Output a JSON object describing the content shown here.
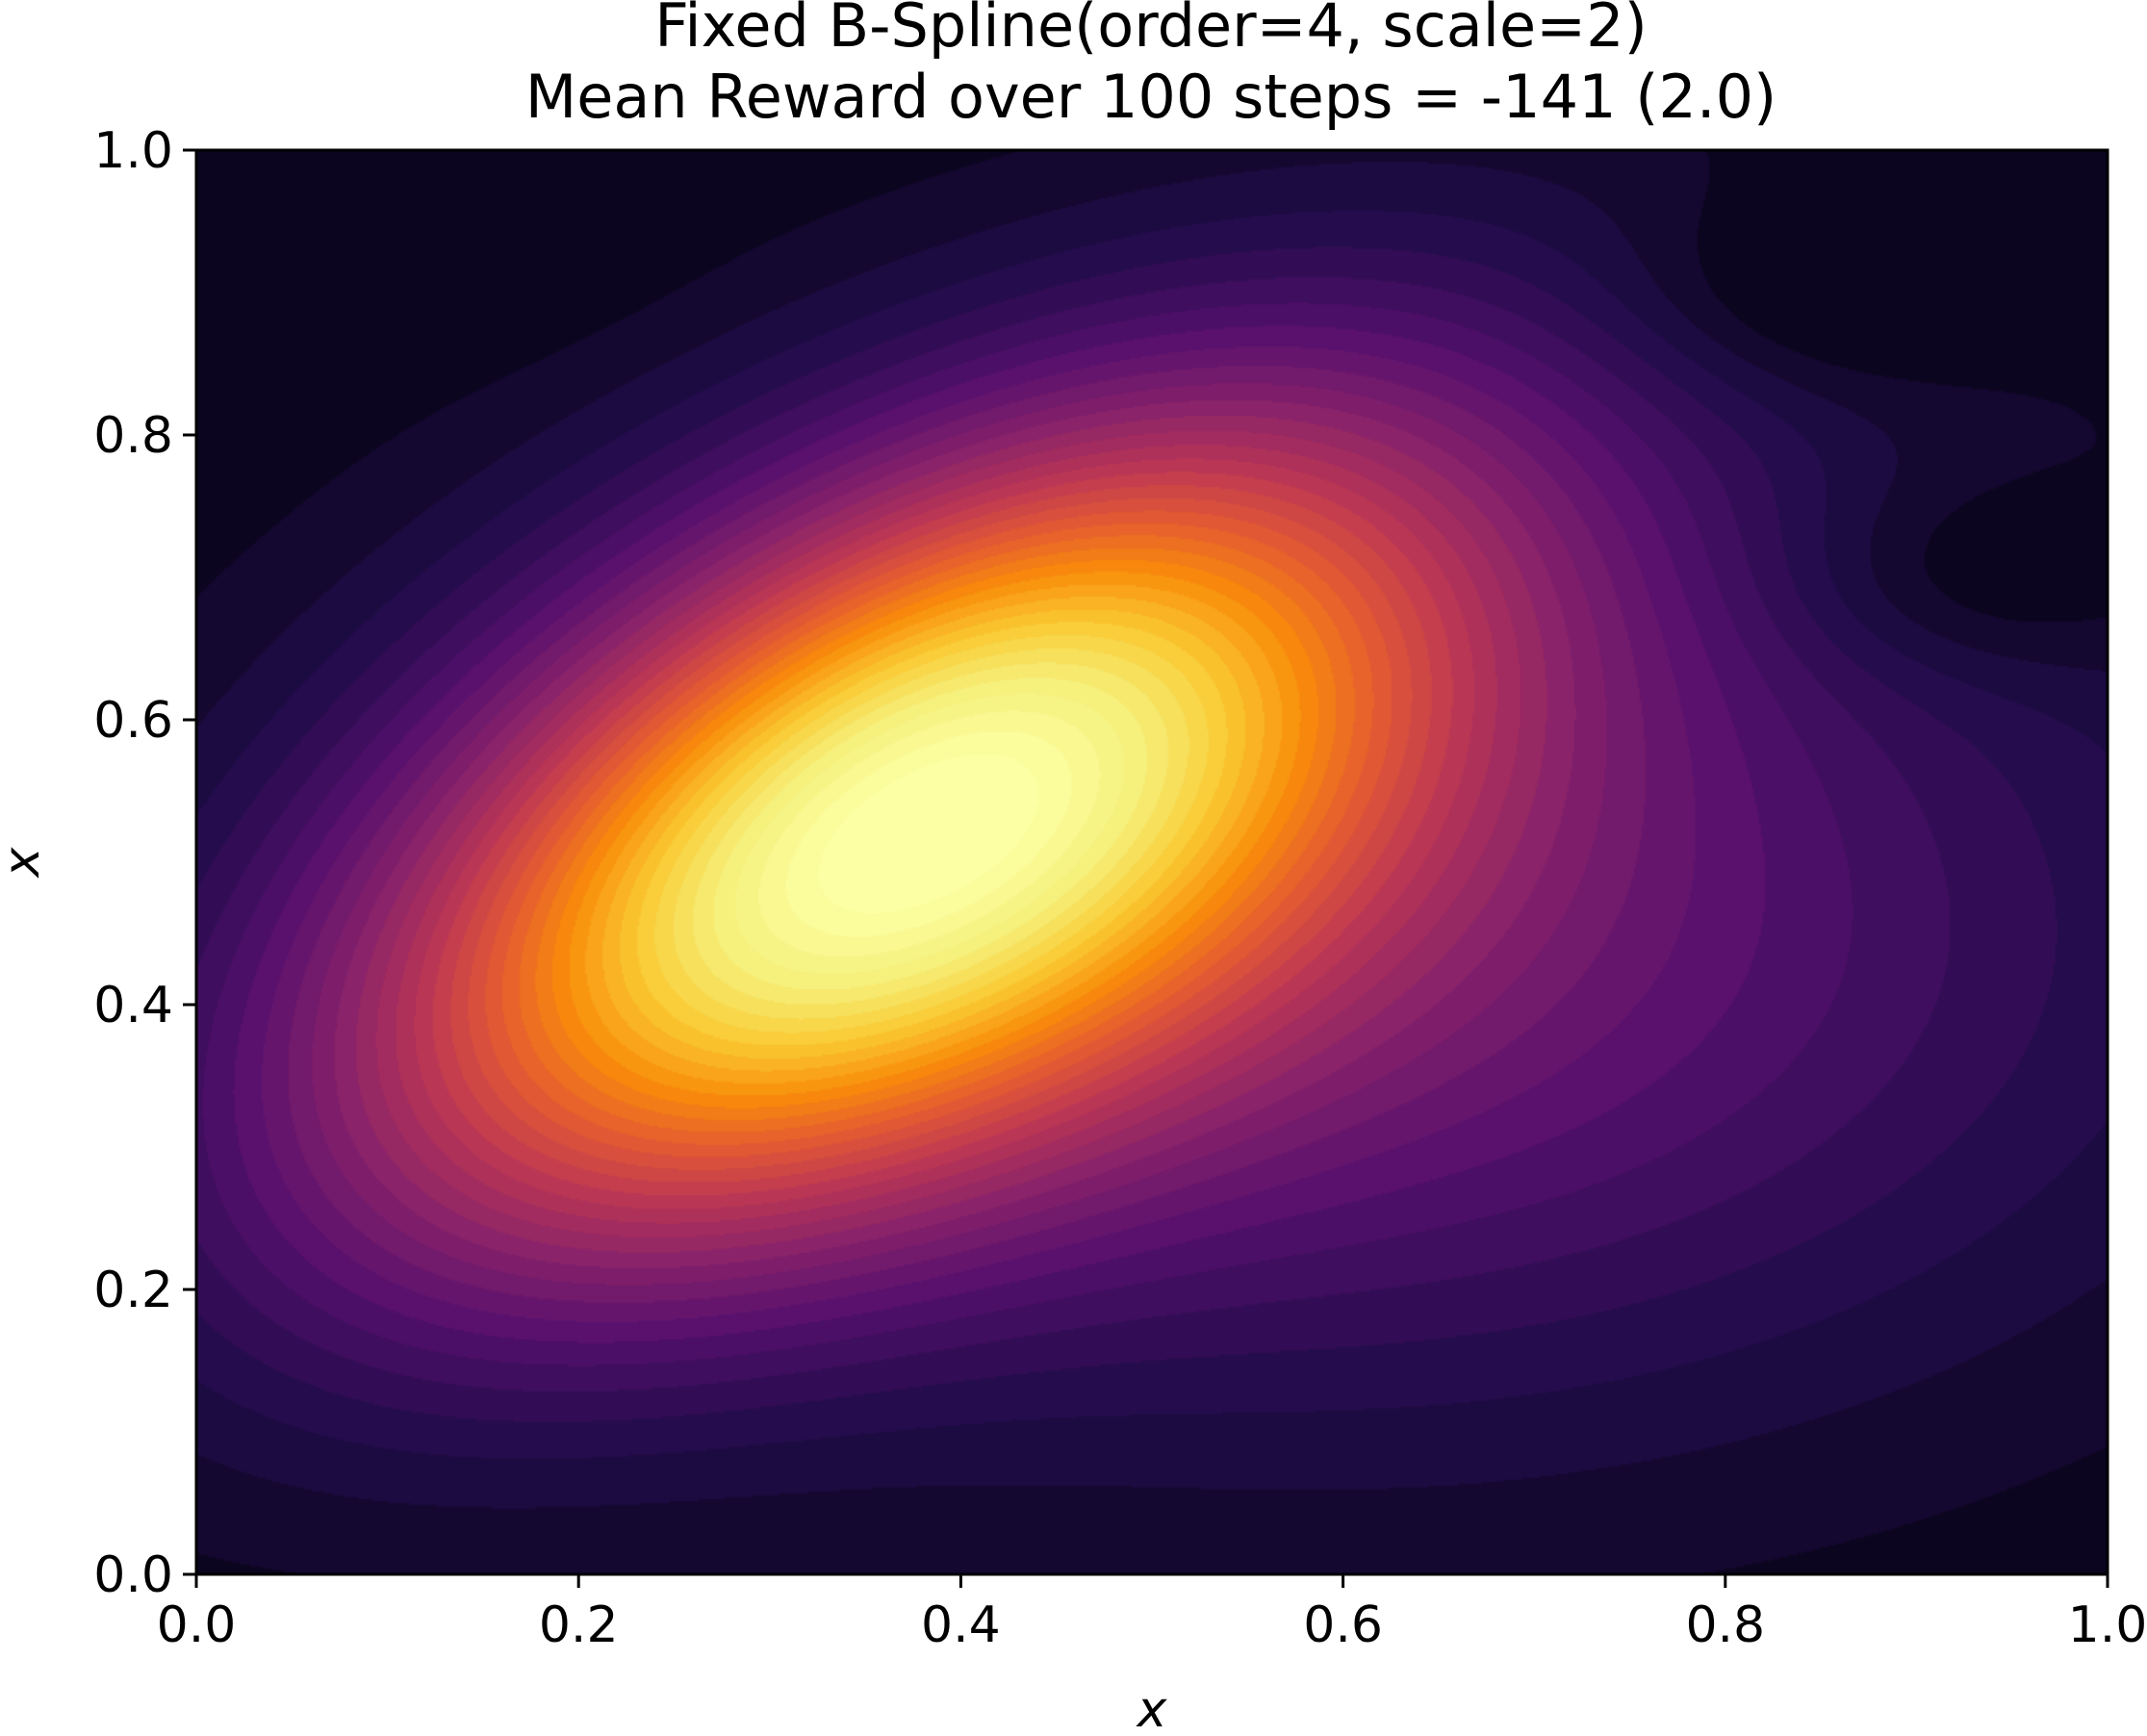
{
  "chart_data": {
    "type": "heatmap",
    "title": "Fixed B-Spline(order=4, scale=2)",
    "subtitle": "Mean Reward over 100 steps = -141 (2.0)",
    "xlabel": "x",
    "ylabel": "x",
    "xlim": [
      0.0,
      1.0
    ],
    "ylim": [
      0.0,
      1.0
    ],
    "x_ticks": [
      "0.0",
      "0.2",
      "0.4",
      "0.6",
      "0.8",
      "1.0"
    ],
    "y_ticks": [
      "0.0",
      "0.2",
      "0.4",
      "0.6",
      "0.8",
      "1.0"
    ],
    "grid": false,
    "colormap": "inferno",
    "contour_style": "filled",
    "peak": {
      "x": 0.37,
      "y": 0.52
    },
    "dark_regions": [
      {
        "x": 0.1,
        "y": 0.96
      },
      {
        "x": 0.93,
        "y": 0.7
      },
      {
        "x": 0.85,
        "y": 0.9
      }
    ]
  }
}
